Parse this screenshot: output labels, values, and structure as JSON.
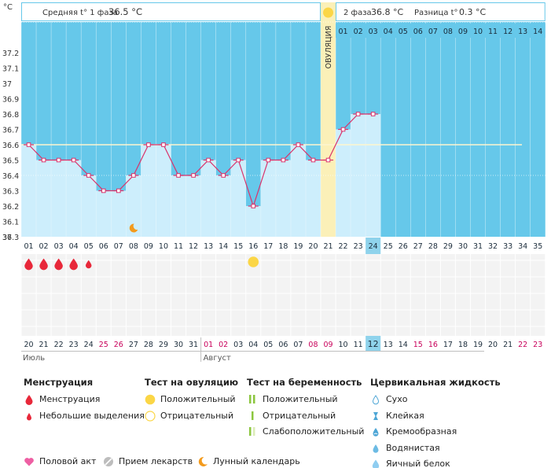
{
  "header": {
    "unit": "°C",
    "phase1_label": "Средняя t° 1 фаза",
    "phase1_value": "36.5 °C",
    "phase2_label": "2 фаза",
    "phase2_value": "36.8 °C",
    "diff_label": "Разница t°",
    "diff_value": "0.3 °C"
  },
  "ovulation_label": "ОВУЛЯЦИЯ",
  "ovulation_day": 21,
  "today_cycle_day": 24,
  "phase2_day_labels": [
    "01",
    "02",
    "03",
    "04",
    "05",
    "06",
    "07",
    "08",
    "09",
    "10",
    "11",
    "12",
    "13",
    "14"
  ],
  "cycle_days": [
    "01",
    "02",
    "03",
    "04",
    "05",
    "06",
    "07",
    "08",
    "09",
    "10",
    "11",
    "12",
    "13",
    "14",
    "15",
    "16",
    "17",
    "18",
    "19",
    "20",
    "21",
    "22",
    "23",
    "24",
    "25",
    "26",
    "27",
    "28",
    "29",
    "30",
    "31",
    "32",
    "33",
    "34",
    "35"
  ],
  "dates": [
    {
      "d": "20",
      "w": false
    },
    {
      "d": "21",
      "w": false
    },
    {
      "d": "22",
      "w": false
    },
    {
      "d": "23",
      "w": false
    },
    {
      "d": "24",
      "w": false
    },
    {
      "d": "25",
      "w": true
    },
    {
      "d": "26",
      "w": true
    },
    {
      "d": "27",
      "w": false
    },
    {
      "d": "28",
      "w": false
    },
    {
      "d": "29",
      "w": false
    },
    {
      "d": "30",
      "w": false
    },
    {
      "d": "31",
      "w": false
    },
    {
      "d": "01",
      "w": true
    },
    {
      "d": "02",
      "w": true
    },
    {
      "d": "03",
      "w": false
    },
    {
      "d": "04",
      "w": false
    },
    {
      "d": "05",
      "w": false
    },
    {
      "d": "06",
      "w": false
    },
    {
      "d": "07",
      "w": false
    },
    {
      "d": "08",
      "w": true
    },
    {
      "d": "09",
      "w": true
    },
    {
      "d": "10",
      "w": false
    },
    {
      "d": "11",
      "w": false
    },
    {
      "d": "12",
      "w": false
    },
    {
      "d": "13",
      "w": false
    },
    {
      "d": "14",
      "w": false
    },
    {
      "d": "15",
      "w": true
    },
    {
      "d": "16",
      "w": true
    },
    {
      "d": "17",
      "w": false
    },
    {
      "d": "18",
      "w": false
    },
    {
      "d": "19",
      "w": false
    },
    {
      "d": "20",
      "w": false
    },
    {
      "d": "21",
      "w": false
    },
    {
      "d": "22",
      "w": true
    },
    {
      "d": "23",
      "w": true
    }
  ],
  "months": [
    {
      "name": "Июль",
      "start_day": 1
    },
    {
      "name": "Август",
      "start_day": 13
    }
  ],
  "menstruation_days": [
    {
      "day": 1,
      "type": "menstruation"
    },
    {
      "day": 2,
      "type": "menstruation"
    },
    {
      "day": 3,
      "type": "menstruation"
    },
    {
      "day": 4,
      "type": "menstruation"
    },
    {
      "day": 5,
      "type": "spotting"
    }
  ],
  "ovulation_test_days": [
    {
      "day": 16,
      "result": "positive"
    }
  ],
  "moon_days": [
    8
  ],
  "colors": {
    "chart_bg": "#66c8ea",
    "bar_fill": "#cdeefc",
    "line": "#d9336b",
    "ovulation_band": "#fbf0b8",
    "today_col": "#8fd3ec",
    "weekend_text": "#c8005a",
    "drop": "#e8283a",
    "sun": "#fbd646",
    "moon": "#f39a1c",
    "heart": "#ee5fa3"
  },
  "chart_data": {
    "type": "line",
    "xlabel": "",
    "ylabel": "°C",
    "ylim": [
      36.0,
      37.3
    ],
    "yticks": [
      "36",
      "36.1",
      "36.2",
      "36.3",
      "36.4",
      "36.5",
      "36.6",
      "36.7",
      "36.8",
      "36.9",
      "37",
      "37.1",
      "37.2",
      "37.3"
    ],
    "coverline": 36.6,
    "x": [
      1,
      2,
      3,
      4,
      5,
      6,
      7,
      8,
      9,
      10,
      11,
      12,
      13,
      14,
      15,
      16,
      17,
      18,
      19,
      20,
      21,
      22,
      23,
      24
    ],
    "values": [
      36.6,
      36.5,
      36.5,
      36.5,
      36.4,
      36.3,
      36.3,
      36.4,
      36.6,
      36.6,
      36.4,
      36.4,
      36.5,
      36.4,
      36.5,
      36.2,
      36.5,
      36.5,
      36.6,
      36.5,
      36.5,
      36.7,
      36.8,
      36.8
    ]
  },
  "legend": {
    "menstruation": {
      "title": "Менструация",
      "items": [
        "Менструация",
        "Небольшие выделения"
      ]
    },
    "ovulation_test": {
      "title": "Тест на овуляцию",
      "items": [
        "Положительный",
        "Отрицательный"
      ]
    },
    "pregnancy_test": {
      "title": "Тест на беременность",
      "items": [
        "Положительный",
        "Отрицательный",
        "Слабоположительный"
      ]
    },
    "cervical_fluid": {
      "title": "Цервикальная жидкость",
      "items": [
        "Сухо",
        "Клейкая",
        "Кремообразная",
        "Водянистая",
        "Яичный белок"
      ]
    },
    "bottom": [
      "Половой акт",
      "Прием лекарств",
      "Лунный календарь"
    ]
  }
}
